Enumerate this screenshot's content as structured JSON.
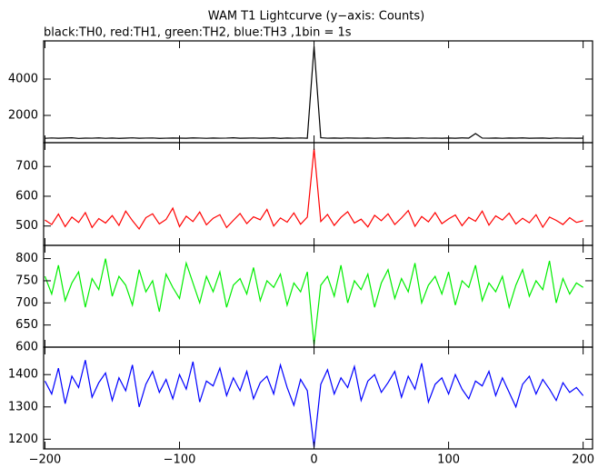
{
  "chart_data": [
    {
      "type": "line",
      "title": "WAM T1 Lightcurve (y−axis: Counts)",
      "subtitle": "black:TH0, red:TH1, green:TH2, blue:TH3 ,1bin = 1s",
      "x": [
        -200,
        -195,
        -190,
        -185,
        -180,
        -175,
        -170,
        -165,
        -160,
        -155,
        -150,
        -145,
        -140,
        -135,
        -130,
        -125,
        -120,
        -115,
        -110,
        -105,
        -100,
        -95,
        -90,
        -85,
        -80,
        -75,
        -70,
        -65,
        -60,
        -55,
        -50,
        -45,
        -40,
        -35,
        -30,
        -25,
        -20,
        -15,
        -10,
        -5,
        0,
        5,
        10,
        15,
        20,
        25,
        30,
        35,
        40,
        45,
        50,
        55,
        60,
        65,
        70,
        75,
        80,
        85,
        90,
        95,
        100,
        105,
        110,
        115,
        120,
        125,
        130,
        135,
        140,
        145,
        150,
        155,
        160,
        165,
        170,
        175,
        180,
        185,
        190,
        195,
        200
      ],
      "series": [
        {
          "name": "TH0",
          "color": "#000000",
          "values": [
            740,
            760,
            745,
            755,
            770,
            735,
            750,
            748,
            762,
            741,
            755,
            738,
            750,
            765,
            744,
            752,
            760,
            739,
            747,
            758,
            749,
            743,
            761,
            754,
            740,
            757,
            746,
            752,
            768,
            742,
            751,
            759,
            744,
            750,
            763,
            738,
            755,
            748,
            760,
            745,
            5800,
            770,
            748,
            755,
            742,
            760,
            751,
            746,
            758,
            740,
            753,
            762,
            744,
            749,
            757,
            741,
            760,
            748,
            752,
            745,
            756,
            743,
            761,
            750,
            1000,
            752,
            746,
            758,
            741,
            755,
            749,
            763,
            744,
            751,
            757,
            739,
            760,
            747,
            754,
            742,
            750
          ]
        }
      ],
      "xlim": [
        -201,
        207
      ],
      "ylim": [
        500,
        6100
      ],
      "yticks": [
        2000,
        4000
      ]
    },
    {
      "type": "line",
      "x": [
        -200,
        -195,
        -190,
        -185,
        -180,
        -175,
        -170,
        -165,
        -160,
        -155,
        -150,
        -145,
        -140,
        -135,
        -130,
        -125,
        -120,
        -115,
        -110,
        -105,
        -100,
        -95,
        -90,
        -85,
        -80,
        -75,
        -70,
        -65,
        -60,
        -55,
        -50,
        -45,
        -40,
        -35,
        -30,
        -25,
        -20,
        -15,
        -10,
        -5,
        0,
        5,
        10,
        15,
        20,
        25,
        30,
        35,
        40,
        45,
        50,
        55,
        60,
        65,
        70,
        75,
        80,
        85,
        90,
        95,
        100,
        105,
        110,
        115,
        120,
        125,
        130,
        135,
        140,
        145,
        150,
        155,
        160,
        165,
        170,
        175,
        180,
        185,
        190,
        195,
        200
      ],
      "series": [
        {
          "name": "TH1",
          "color": "#ff0000",
          "values": [
            520,
            505,
            540,
            498,
            530,
            512,
            545,
            495,
            525,
            510,
            535,
            502,
            550,
            518,
            490,
            528,
            541,
            507,
            522,
            560,
            498,
            533,
            515,
            547,
            504,
            526,
            538,
            495,
            519,
            542,
            508,
            531,
            521,
            556,
            500,
            527,
            513,
            544,
            506,
            530,
            760,
            515,
            539,
            502,
            529,
            548,
            510,
            523,
            497,
            536,
            518,
            541,
            505,
            527,
            552,
            499,
            532,
            514,
            545,
            508,
            524,
            537,
            501,
            529,
            516,
            550,
            503,
            534,
            520,
            543,
            507,
            526,
            511,
            538,
            496,
            530,
            519,
            505,
            528,
            512,
            518
          ]
        }
      ],
      "xlim": [
        -201,
        207
      ],
      "ylim": [
        435,
        780
      ],
      "yticks": [
        500,
        600,
        700
      ]
    },
    {
      "type": "line",
      "x": [
        -200,
        -195,
        -190,
        -185,
        -180,
        -175,
        -170,
        -165,
        -160,
        -155,
        -150,
        -145,
        -140,
        -135,
        -130,
        -125,
        -120,
        -115,
        -110,
        -105,
        -100,
        -95,
        -90,
        -85,
        -80,
        -75,
        -70,
        -65,
        -60,
        -55,
        -50,
        -45,
        -40,
        -35,
        -30,
        -25,
        -20,
        -15,
        -10,
        -5,
        0,
        5,
        10,
        15,
        20,
        25,
        30,
        35,
        40,
        45,
        50,
        55,
        60,
        65,
        70,
        75,
        80,
        85,
        90,
        95,
        100,
        105,
        110,
        115,
        120,
        125,
        130,
        135,
        140,
        145,
        150,
        155,
        160,
        165,
        170,
        175,
        180,
        185,
        190,
        195,
        200
      ],
      "series": [
        {
          "name": "TH2",
          "color": "#00ee00",
          "values": [
            760,
            720,
            785,
            705,
            745,
            770,
            690,
            755,
            730,
            800,
            715,
            760,
            740,
            695,
            775,
            725,
            750,
            680,
            765,
            735,
            710,
            790,
            745,
            700,
            760,
            725,
            770,
            690,
            740,
            755,
            720,
            780,
            705,
            750,
            735,
            765,
            695,
            745,
            725,
            770,
            605,
            740,
            760,
            715,
            785,
            700,
            750,
            730,
            765,
            690,
            745,
            775,
            710,
            755,
            725,
            790,
            700,
            740,
            760,
            720,
            770,
            695,
            750,
            735,
            785,
            705,
            745,
            725,
            760,
            690,
            740,
            775,
            715,
            750,
            730,
            795,
            700,
            755,
            720,
            745,
            735
          ]
        }
      ],
      "xlim": [
        -201,
        207
      ],
      "ylim": [
        600,
        830
      ],
      "yticks": [
        600,
        650,
        700,
        750,
        800
      ]
    },
    {
      "type": "line",
      "x": [
        -200,
        -195,
        -190,
        -185,
        -180,
        -175,
        -170,
        -165,
        -160,
        -155,
        -150,
        -145,
        -140,
        -135,
        -130,
        -125,
        -120,
        -115,
        -110,
        -105,
        -100,
        -95,
        -90,
        -85,
        -80,
        -75,
        -70,
        -65,
        -60,
        -55,
        -50,
        -45,
        -40,
        -35,
        -30,
        -25,
        -20,
        -15,
        -10,
        -5,
        0,
        5,
        10,
        15,
        20,
        25,
        30,
        35,
        40,
        45,
        50,
        55,
        60,
        65,
        70,
        75,
        80,
        85,
        90,
        95,
        100,
        105,
        110,
        115,
        120,
        125,
        130,
        135,
        140,
        145,
        150,
        155,
        160,
        165,
        170,
        175,
        180,
        185,
        190,
        195,
        200
      ],
      "series": [
        {
          "name": "TH3",
          "color": "#0000ff",
          "values": [
            1380,
            1340,
            1420,
            1310,
            1395,
            1360,
            1445,
            1330,
            1375,
            1405,
            1320,
            1390,
            1350,
            1430,
            1300,
            1370,
            1410,
            1345,
            1385,
            1325,
            1400,
            1355,
            1440,
            1315,
            1380,
            1365,
            1420,
            1335,
            1390,
            1350,
            1410,
            1325,
            1375,
            1395,
            1340,
            1430,
            1360,
            1305,
            1385,
            1350,
            1175,
            1370,
            1415,
            1340,
            1390,
            1360,
            1425,
            1320,
            1380,
            1400,
            1345,
            1375,
            1410,
            1330,
            1395,
            1355,
            1435,
            1315,
            1370,
            1390,
            1340,
            1400,
            1355,
            1325,
            1380,
            1365,
            1410,
            1335,
            1390,
            1345,
            1300,
            1370,
            1395,
            1340,
            1385,
            1355,
            1320,
            1375,
            1345,
            1360,
            1335
          ]
        }
      ],
      "xlim": [
        -201,
        207
      ],
      "ylim": [
        1170,
        1485
      ],
      "yticks": [
        1200,
        1300,
        1400
      ],
      "xticks": [
        {
          "value": -200,
          "label": "−200"
        },
        {
          "value": -100,
          "label": "−100"
        },
        0,
        100,
        200
      ]
    }
  ]
}
